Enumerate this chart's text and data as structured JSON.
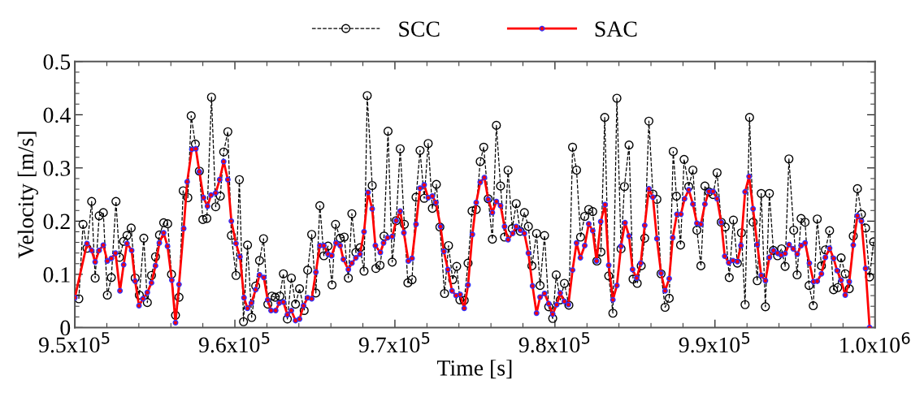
{
  "chart_data": {
    "type": "line",
    "xlabel": "Time [s]",
    "ylabel": "Velocity [m/s]",
    "xlim": [
      950000,
      1000000
    ],
    "ylim": [
      0,
      0.5
    ],
    "xticks": [
      {
        "value": 950000,
        "label": "9.5x10$^{5}$"
      },
      {
        "value": 960000,
        "label": "9.6x10$^{5}$"
      },
      {
        "value": 970000,
        "label": "9.7x10$^{5}$"
      },
      {
        "value": 980000,
        "label": "9.8x10$^{5}$"
      },
      {
        "value": 990000,
        "label": "9.9x10$^{5}$"
      },
      {
        "value": 1000000,
        "label": "1.0x10$^{6}$"
      }
    ],
    "yticks": [
      0,
      0.1,
      0.2,
      0.3,
      0.4,
      0.5
    ],
    "grid": false,
    "legend": "top",
    "marker": "circle",
    "series": [
      {
        "name": "SCC",
        "color": "#000000",
        "line_style": "dashed",
        "x": [
          950250,
          950510,
          950760,
          951050,
          951270,
          951520,
          951780,
          952030,
          952280,
          952570,
          952790,
          953050,
          953260,
          953520,
          953770,
          954030,
          954310,
          954530,
          954790,
          955040,
          955290,
          955550,
          955800,
          956040,
          956290,
          956510,
          956770,
          957060,
          957270,
          957530,
          957780,
          958000,
          958250,
          958540,
          958800,
          959090,
          959300,
          959560,
          959780,
          960070,
          960280,
          960540,
          960790,
          961050,
          961300,
          961540,
          961790,
          962060,
          962310,
          962520,
          962810,
          963030,
          963280,
          963530,
          963790,
          964040,
          964330,
          964550,
          964800,
          965060,
          965310,
          965560,
          965820,
          966070,
          966290,
          966580,
          966830,
          967090,
          967310,
          967560,
          967820,
          968070,
          968270,
          968580,
          968810,
          969070,
          969320,
          969570,
          969830,
          970080,
          970330,
          970590,
          970810,
          971070,
          971320,
          971570,
          971830,
          972080,
          972340,
          972590,
          972810,
          973100,
          973350,
          973610,
          973860,
          974060,
          974330,
          974570,
          974820,
          975080,
          975330,
          975550,
          975830,
          976090,
          976340,
          976600,
          976850,
          977070,
          977330,
          977580,
          977830,
          978090,
          978340,
          978560,
          978850,
          979070,
          979350,
          979610,
          979860,
          980080,
          980330,
          980590,
          980870,
          981100,
          981350,
          981600,
          981860,
          982110,
          982360,
          982620,
          982870,
          983110,
          983360,
          983620,
          983870,
          984130,
          984340,
          984630,
          984880,
          985140,
          985390,
          985610,
          985870,
          986120,
          986370,
          986630,
          986880,
          987140,
          987390,
          987590,
          987850,
          988070,
          988360,
          988620,
          988870,
          989120,
          989370,
          989620,
          989880,
          990130,
          990390,
          990640,
          990890,
          991150,
          991400,
          991650,
          991880,
          992160,
          992380,
          992640,
          992890,
          993150,
          993400,
          993650,
          993910,
          994160,
          994380,
          994620,
          994920,
          995130,
          995380,
          995630,
          995880,
          996140,
          996390,
          996650,
          996900,
          997160,
          997410,
          997670,
          997880,
          998140,
          998390,
          998640,
          998900,
          999150,
          999410,
          999660,
          999910
        ],
        "values": [
          0.054,
          0.194,
          0.149,
          0.237,
          0.093,
          0.21,
          0.216,
          0.061,
          0.094,
          0.237,
          0.132,
          0.162,
          0.173,
          0.187,
          0.093,
          0.061,
          0.168,
          0.047,
          0.098,
          0.133,
          0.174,
          0.197,
          0.195,
          0.1,
          0.023,
          0.057,
          0.257,
          0.244,
          0.398,
          0.345,
          0.294,
          0.203,
          0.205,
          0.433,
          0.227,
          0.247,
          0.33,
          0.368,
          0.173,
          0.098,
          0.278,
          0.011,
          0.155,
          0.019,
          0.078,
          0.126,
          0.167,
          0.044,
          0.059,
          0.057,
          0.059,
          0.101,
          0.016,
          0.093,
          0.044,
          0.073,
          0.032,
          0.108,
          0.175,
          0.065,
          0.229,
          0.135,
          0.153,
          0.08,
          0.194,
          0.168,
          0.17,
          0.093,
          0.214,
          0.141,
          0.15,
          0.106,
          0.436,
          0.267,
          0.111,
          0.117,
          0.172,
          0.369,
          0.123,
          0.201,
          0.336,
          0.194,
          0.084,
          0.09,
          0.245,
          0.333,
          0.243,
          0.346,
          0.224,
          0.269,
          0.189,
          0.064,
          0.154,
          0.09,
          0.115,
          0.052,
          0.051,
          0.121,
          0.219,
          0.222,
          0.312,
          0.339,
          0.242,
          0.166,
          0.38,
          0.266,
          0.17,
          0.296,
          0.186,
          0.233,
          0.181,
          0.216,
          0.19,
          0.116,
          0.177,
          0.079,
          0.173,
          0.039,
          0.017,
          0.099,
          0.052,
          0.083,
          0.042,
          0.339,
          0.296,
          0.17,
          0.209,
          0.222,
          0.218,
          0.125,
          0.142,
          0.395,
          0.097,
          0.027,
          0.431,
          0.148,
          0.265,
          0.343,
          0.091,
          0.083,
          0.116,
          0.168,
          0.388,
          0.251,
          0.241,
          0.101,
          0.038,
          0.055,
          0.331,
          0.247,
          0.155,
          0.316,
          0.265,
          0.296,
          0.183,
          0.116,
          0.266,
          0.255,
          0.25,
          0.291,
          0.198,
          0.189,
          0.094,
          0.202,
          0.121,
          0.178,
          0.043,
          0.395,
          0.198,
          0.088,
          0.252,
          0.039,
          0.252,
          0.145,
          0.135,
          0.148,
          0.115,
          0.317,
          0.183,
          0.099,
          0.205,
          0.198,
          0.079,
          0.041,
          0.204,
          0.116,
          0.146,
          0.182,
          0.071,
          0.075,
          0.131,
          0.101,
          0.073,
          0.172,
          0.261,
          0.213,
          0.187,
          0.095,
          0.161
        ]
      },
      {
        "name": "SAC",
        "color": "#ff0000",
        "line_style": "solid",
        "x": [
          950000,
          950760,
          951050,
          951270,
          951520,
          951780,
          952030,
          952280,
          952540,
          952820,
          953050,
          953260,
          953550,
          953770,
          954010,
          954260,
          954530,
          954790,
          955040,
          955280,
          955550,
          955790,
          956060,
          956290,
          956510,
          956800,
          957020,
          957310,
          957560,
          957780,
          958040,
          958290,
          958510,
          958800,
          959050,
          959300,
          959560,
          959780,
          960070,
          960320,
          960570,
          960790,
          961030,
          961300,
          961540,
          961810,
          962050,
          962260,
          962550,
          962770,
          963030,
          963280,
          963530,
          963790,
          964040,
          964290,
          964550,
          964800,
          965060,
          965310,
          965560,
          965820,
          966040,
          966320,
          966580,
          966780,
          967090,
          967310,
          967560,
          967820,
          968070,
          968320,
          968580,
          968780,
          969090,
          969290,
          969540,
          969830,
          970080,
          970330,
          970560,
          970840,
          971070,
          971320,
          971570,
          971830,
          972080,
          972340,
          972560,
          972850,
          973060,
          973310,
          973570,
          973820,
          974080,
          974330,
          974570,
          974840,
          975080,
          975330,
          975590,
          975830,
          976090,
          976340,
          976600,
          976850,
          977070,
          977360,
          977580,
          977830,
          978090,
          978340,
          978600,
          978850,
          979070,
          979350,
          979610,
          979860,
          980110,
          980330,
          980590,
          980840,
          981100,
          981350,
          981590,
          981860,
          982110,
          982360,
          982600,
          982860,
          983130,
          983360,
          983620,
          983870,
          984130,
          984380,
          984630,
          984850,
          985110,
          985360,
          985610,
          985870,
          986120,
          986370,
          986630,
          986880,
          987140,
          987360,
          987620,
          987870,
          988100,
          988360,
          988620,
          988870,
          989120,
          989370,
          989620,
          989880,
          990130,
          990390,
          990610,
          990860,
          991120,
          991400,
          991620,
          991880,
          992130,
          992380,
          992640,
          992890,
          993150,
          993400,
          993650,
          993910,
          994130,
          994380,
          994630,
          994890,
          995140,
          995380,
          995630,
          995900,
          996160,
          996390,
          996650,
          996900,
          997160,
          997410,
          997630,
          997880,
          998140,
          998390,
          998640,
          998900,
          999150,
          999410,
          999660
        ],
        "values": [
          0.056,
          0.158,
          0.145,
          0.123,
          0.145,
          0.155,
          0.125,
          0.13,
          0.14,
          0.069,
          0.118,
          0.158,
          0.145,
          0.087,
          0.041,
          0.054,
          0.066,
          0.084,
          0.116,
          0.159,
          0.178,
          0.153,
          0.089,
          0.009,
          0.081,
          0.186,
          0.274,
          0.335,
          0.336,
          0.293,
          0.244,
          0.228,
          0.249,
          0.253,
          0.278,
          0.312,
          0.278,
          0.2,
          0.158,
          0.133,
          0.056,
          0.036,
          0.046,
          0.071,
          0.099,
          0.094,
          0.052,
          0.032,
          0.032,
          0.046,
          0.048,
          0.024,
          0.032,
          0.013,
          0.016,
          0.041,
          0.056,
          0.054,
          0.104,
          0.154,
          0.154,
          0.138,
          0.135,
          0.159,
          0.154,
          0.128,
          0.109,
          0.121,
          0.131,
          0.138,
          0.18,
          0.254,
          0.223,
          0.154,
          0.141,
          0.159,
          0.169,
          0.171,
          0.201,
          0.219,
          0.178,
          0.125,
          0.13,
          0.194,
          0.262,
          0.268,
          0.244,
          0.247,
          0.235,
          0.19,
          0.143,
          0.109,
          0.069,
          0.06,
          0.062,
          0.036,
          0.08,
          0.175,
          0.235,
          0.273,
          0.282,
          0.241,
          0.216,
          0.237,
          0.229,
          0.19,
          0.165,
          0.177,
          0.19,
          0.183,
          0.177,
          0.14,
          0.078,
          0.027,
          0.057,
          0.064,
          0.045,
          0.025,
          0.043,
          0.065,
          0.049,
          0.043,
          0.108,
          0.159,
          0.131,
          0.154,
          0.195,
          0.182,
          0.125,
          0.199,
          0.231,
          0.117,
          0.052,
          0.079,
          0.153,
          0.197,
          0.172,
          0.109,
          0.093,
          0.121,
          0.192,
          0.261,
          0.245,
          0.167,
          0.102,
          0.069,
          0.092,
          0.169,
          0.213,
          0.213,
          0.242,
          0.259,
          0.232,
          0.196,
          0.194,
          0.232,
          0.256,
          0.256,
          0.242,
          0.198,
          0.134,
          0.122,
          0.126,
          0.124,
          0.154,
          0.255,
          0.284,
          0.223,
          0.156,
          0.098,
          0.088,
          0.132,
          0.145,
          0.14,
          0.136,
          0.139,
          0.156,
          0.148,
          0.138,
          0.154,
          0.159,
          0.121,
          0.086,
          0.087,
          0.101,
          0.132,
          0.149,
          0.13,
          0.107,
          0.089,
          0.061,
          0.086,
          0.155,
          0.21,
          0.2,
          0.111,
          0
        ]
      }
    ]
  }
}
